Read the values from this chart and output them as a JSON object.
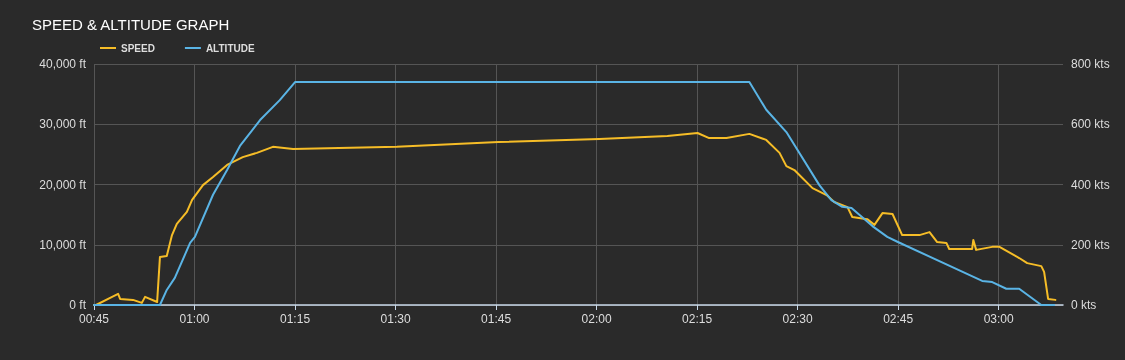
{
  "chart_data": {
    "type": "line",
    "title": "SPEED & ALTITUDE GRAPH",
    "x": [
      0.75,
      0.914,
      0.931,
      0.951,
      0.989,
      1.001,
      1.046,
      1.081,
      1.113,
      1.163,
      1.212,
      1.25,
      2.38,
      2.422,
      2.472,
      2.554,
      2.584,
      2.611,
      2.634,
      2.686,
      2.723,
      2.748,
      2.959,
      2.984,
      3.019,
      3.051,
      3.106,
      3.138
    ],
    "series": [
      {
        "name": "SPEED",
        "color": "#f6bd27",
        "axis": "y2",
        "x": [
          0.75,
          0.755,
          0.795,
          0.81,
          0.815,
          0.847,
          0.869,
          0.877,
          0.907,
          0.914,
          0.931,
          0.944,
          0.956,
          0.981,
          0.994,
          1.021,
          1.046,
          1.081,
          1.12,
          1.155,
          1.195,
          1.245,
          1.503,
          1.756,
          2.007,
          2.176,
          2.251,
          2.28,
          2.323,
          2.38,
          2.422,
          2.455,
          2.472,
          2.492,
          2.537,
          2.572,
          2.591,
          2.624,
          2.636,
          2.673,
          2.691,
          2.711,
          2.736,
          2.76,
          2.803,
          2.828,
          2.847,
          2.87,
          2.877,
          2.934,
          2.937,
          2.944,
          2.984,
          3.002,
          3.051,
          3.071,
          3.106,
          3.113,
          3.123,
          3.141
        ],
        "values": [
          0,
          0,
          27,
          37,
          20,
          17,
          7,
          27,
          10,
          159,
          163,
          232,
          269,
          309,
          349,
          398,
          425,
          465,
          491,
          505,
          525,
          518,
          525,
          541,
          551,
          561,
          571,
          554,
          554,
          568,
          548,
          505,
          461,
          448,
          388,
          365,
          342,
          325,
          292,
          285,
          266,
          305,
          302,
          232,
          232,
          242,
          209,
          206,
          186,
          186,
          216,
          183,
          193,
          193,
          156,
          139,
          129,
          110,
          20,
          17
        ]
      },
      {
        "name": "ALTITUDE",
        "color": "#5ab4e5",
        "values": [
          0,
          0,
          2500,
          4500,
          10300,
          11300,
          18300,
          22400,
          26400,
          30700,
          34000,
          37000,
          37000,
          32400,
          28700,
          19900,
          17400,
          16300,
          16100,
          13100,
          11300,
          10500,
          4000,
          3800,
          2700,
          2700,
          0,
          0
        ]
      }
    ],
    "xlim": [
      0.75,
      3.16
    ],
    "xticks": [
      {
        "value": 0.75,
        "label": "00:45"
      },
      {
        "value": 1,
        "label": "01:00"
      },
      {
        "value": 1.25,
        "label": "01:15"
      },
      {
        "value": 1.5,
        "label": "01:30"
      },
      {
        "value": 1.75,
        "label": "01:45"
      },
      {
        "value": 2,
        "label": "02:00"
      },
      {
        "value": 2.25,
        "label": "02:15"
      },
      {
        "value": 2.5,
        "label": "02:30"
      },
      {
        "value": 2.75,
        "label": "02:45"
      },
      {
        "value": 3,
        "label": "03:00"
      }
    ],
    "ylim": [
      0,
      40000
    ],
    "yticks": [
      {
        "value": 0,
        "label": "0 ft"
      },
      {
        "value": 10000,
        "label": "10,000 ft"
      },
      {
        "value": 20000,
        "label": "20,000 ft"
      },
      {
        "value": 30000,
        "label": "30,000 ft"
      },
      {
        "value": 40000,
        "label": "40,000 ft"
      }
    ],
    "y2lim": [
      0,
      800
    ],
    "y2ticks": [
      {
        "value": 0,
        "label": "0 kts"
      },
      {
        "value": 200,
        "label": "200 kts"
      },
      {
        "value": 400,
        "label": "400 kts"
      },
      {
        "value": 600,
        "label": "600 kts"
      },
      {
        "value": 800,
        "label": "800 kts"
      }
    ],
    "grid": true,
    "legend": "top left",
    "marker": "none",
    "line_style": "solid"
  }
}
